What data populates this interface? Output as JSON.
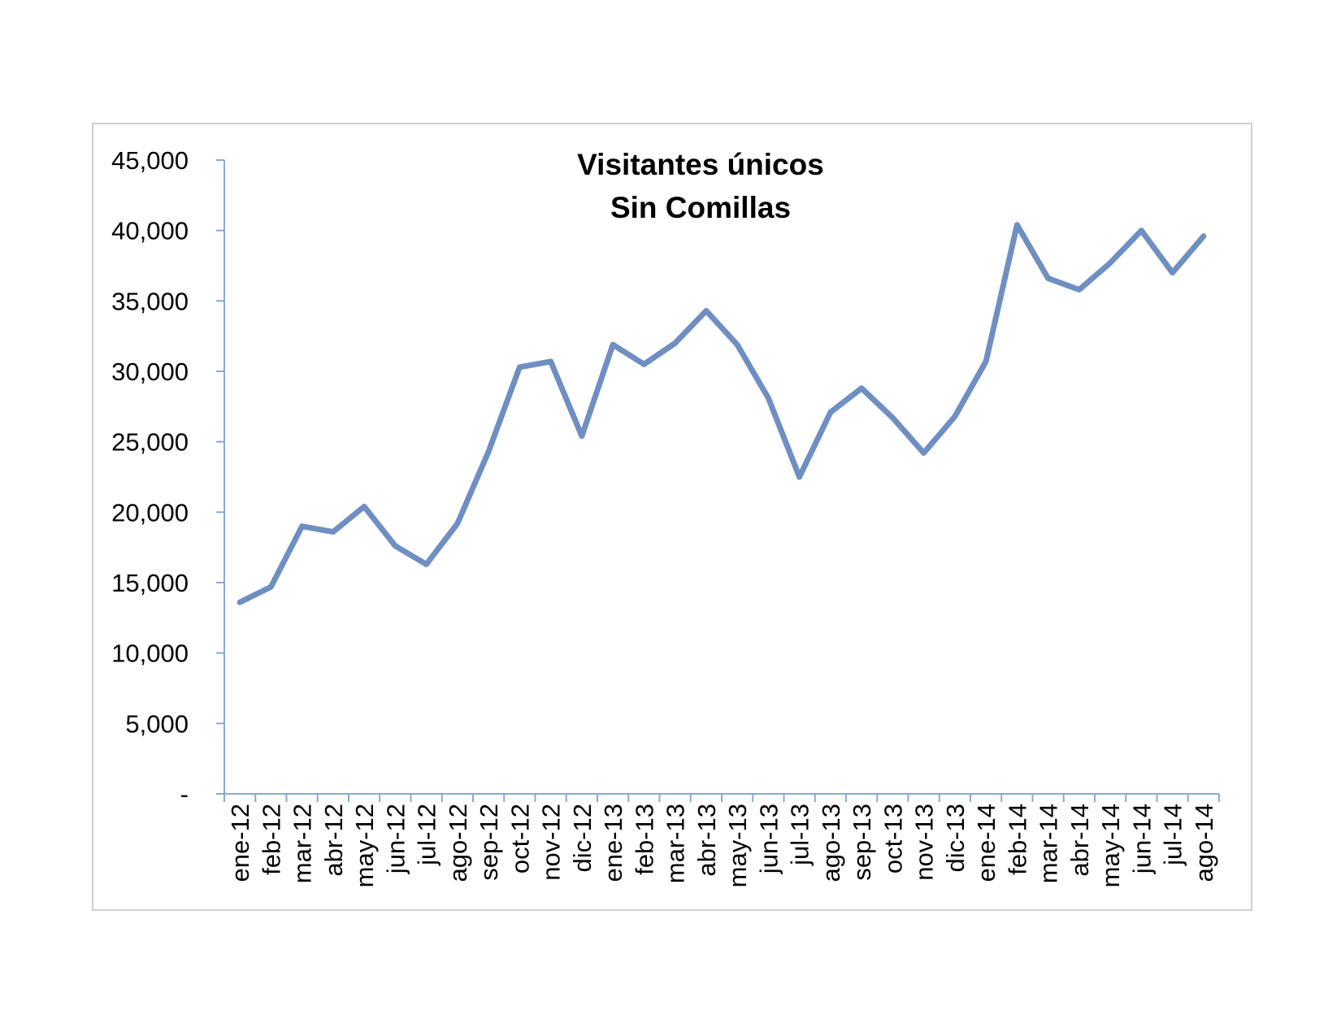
{
  "chart_data": {
    "type": "line",
    "title_lines": [
      "Visitantes únicos",
      "Sin Comillas"
    ],
    "xlabel": "",
    "ylabel": "",
    "ylim": [
      0,
      45000
    ],
    "y_ticks": [
      {
        "value": 0,
        "label": "-"
      },
      {
        "value": 5000,
        "label": "5,000"
      },
      {
        "value": 10000,
        "label": "10,000"
      },
      {
        "value": 15000,
        "label": "15,000"
      },
      {
        "value": 20000,
        "label": "20,000"
      },
      {
        "value": 25000,
        "label": "25,000"
      },
      {
        "value": 30000,
        "label": "30,000"
      },
      {
        "value": 35000,
        "label": "35,000"
      },
      {
        "value": 40000,
        "label": "40,000"
      },
      {
        "value": 45000,
        "label": "45,000"
      }
    ],
    "categories": [
      "ene-12",
      "feb-12",
      "mar-12",
      "abr-12",
      "may-12",
      "jun-12",
      "jul-12",
      "ago-12",
      "sep-12",
      "oct-12",
      "nov-12",
      "dic-12",
      "ene-13",
      "feb-13",
      "mar-13",
      "abr-13",
      "may-13",
      "jun-13",
      "jul-13",
      "ago-13",
      "sep-13",
      "oct-13",
      "nov-13",
      "dic-13",
      "ene-14",
      "feb-14",
      "mar-14",
      "abr-14",
      "may-14",
      "jun-14",
      "jul-14",
      "ago-14"
    ],
    "series": [
      {
        "values": [
          13600,
          14700,
          19000,
          18600,
          20400,
          17600,
          16300,
          19200,
          24300,
          30300,
          30700,
          25400,
          31900,
          30500,
          32000,
          34300,
          31900,
          28100,
          22500,
          27100,
          28800,
          26700,
          24200,
          26800,
          30700,
          40400,
          36600,
          35800,
          37700,
          40000,
          37000,
          39600
        ],
        "color": "#6f8fc3"
      }
    ],
    "grid": false,
    "legend": "none",
    "axis_color": "#8ca7d2"
  }
}
